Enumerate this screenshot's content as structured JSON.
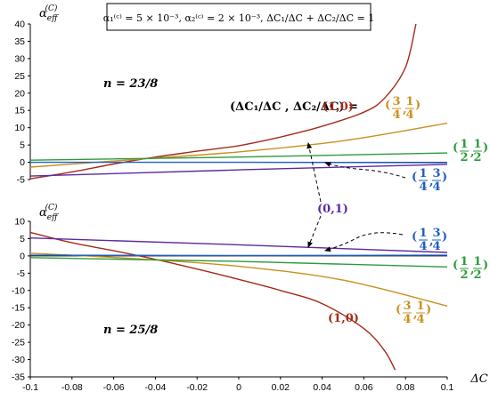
{
  "colors": {
    "c10": "#a52a1a",
    "c3414": "#c9901e",
    "c1212": "#2e9a3c",
    "c1434": "#1f5fc0",
    "c01": "#5b2ba0"
  },
  "chart_data": {
    "type": "line",
    "title": "α₁⁽ᶜ⁾ = 5 × 10⁻³,  α₂⁽ᶜ⁾ = 2 × 10⁻³,  ΔC₁/ΔC + ΔC₂/ΔC = 1",
    "xlabel": "ΔC",
    "xlim": [
      -0.1,
      0.1
    ],
    "xticks": [
      "-0.1",
      "-0.08",
      "-0.06",
      "-0.04",
      "-0.02",
      "0",
      "0.02",
      "0.04",
      "0.06",
      "0.08",
      "0.1"
    ],
    "grid": false,
    "panels": [
      {
        "ylabel_main": "α",
        "ylabel_sub": "eff",
        "ylabel_sup": "(C)",
        "ylim": [
          -5,
          40
        ],
        "yticks": [
          "40",
          "35",
          "30",
          "25",
          "20",
          "15",
          "10",
          "5",
          "0",
          "-5"
        ],
        "n_label": "n = 23/8",
        "series": [
          {
            "name": "(1,0)",
            "color_key": "c10",
            "x": [
              -0.1,
              -0.08,
              -0.06,
              -0.04,
              -0.02,
              0,
              0.02,
              0.04,
              0.06,
              0.07,
              0.08,
              0.085
            ],
            "y": [
              -4.8,
              -2.8,
              -0.5,
              1.5,
              3.2,
              4.8,
              7.3,
              10.4,
              14.5,
              18.6,
              27.5,
              40
            ]
          },
          {
            "name": "(3/4,1/4)",
            "color_key": "c3414",
            "x": [
              -0.1,
              -0.05,
              0,
              0.05,
              0.1
            ],
            "y": [
              -1.4,
              0.8,
              3.0,
              6.2,
              11.3
            ]
          },
          {
            "name": "(1/2,1/2)",
            "color_key": "c1212",
            "x": [
              -0.1,
              0,
              0.1
            ],
            "y": [
              0.6,
              1.5,
              2.7
            ]
          },
          {
            "name": "(1/4,3/4)",
            "color_key": "c1434",
            "x": [
              -0.1,
              0,
              0.1
            ],
            "y": [
              0.0,
              0.0,
              -0.1
            ]
          },
          {
            "name": "(0,1)",
            "color_key": "c01",
            "x": [
              -0.1,
              0,
              0.1
            ],
            "y": [
              -4.0,
              -2.2,
              -0.6
            ]
          }
        ]
      },
      {
        "ylabel_main": "α",
        "ylabel_sub": "eff",
        "ylabel_sup": "(C)",
        "ylim": [
          -35,
          10
        ],
        "yticks": [
          "10",
          "5",
          "0",
          "-5",
          "-10",
          "-15",
          "-20",
          "-25",
          "-30",
          "-35"
        ],
        "n_label": "n = 25/8",
        "series": [
          {
            "name": "(1,0)",
            "color_key": "c10",
            "x": [
              -0.1,
              -0.08,
              -0.06,
              -0.04,
              -0.02,
              0,
              0.02,
              0.04,
              0.06,
              0.07,
              0.075
            ],
            "y": [
              6.8,
              3.8,
              1.5,
              -1.0,
              -3.8,
              -6.8,
              -10.0,
              -13.8,
              -21.0,
              -27.5,
              -33.0
            ]
          },
          {
            "name": "(3/4,1/4)",
            "color_key": "c3414",
            "x": [
              -0.1,
              -0.05,
              0,
              0.05,
              0.1
            ],
            "y": [
              0.8,
              -0.8,
              -3.0,
              -7.0,
              -14.5
            ]
          },
          {
            "name": "(1/2,1/2)",
            "color_key": "c1212",
            "x": [
              -0.1,
              0,
              0.1
            ],
            "y": [
              -0.5,
              -1.6,
              -3.2
            ]
          },
          {
            "name": "(1/4,3/4)",
            "color_key": "c1434",
            "x": [
              -0.1,
              0,
              0.1
            ],
            "y": [
              0.2,
              0.1,
              0.2
            ]
          },
          {
            "name": "(0,1)",
            "color_key": "c01",
            "x": [
              -0.1,
              0,
              0.1
            ],
            "y": [
              5.2,
              3.2,
              1.0
            ]
          }
        ]
      }
    ]
  },
  "annotations": {
    "ratio_lhs": "(ΔC₁/ΔC , ΔC₂/ΔC) =",
    "label_10": "(1,0)",
    "label_3414_top": "3",
    "label_3414_bot": "4",
    "label_3414_b": "1",
    "label_3414_bb": "4",
    "label_1212_a": "1",
    "label_1212_b": "2",
    "label_1434_a": "1",
    "label_1434_b": "4",
    "label_1434_c": "3",
    "label_1434_d": "4",
    "label_01": "(0,1)"
  }
}
